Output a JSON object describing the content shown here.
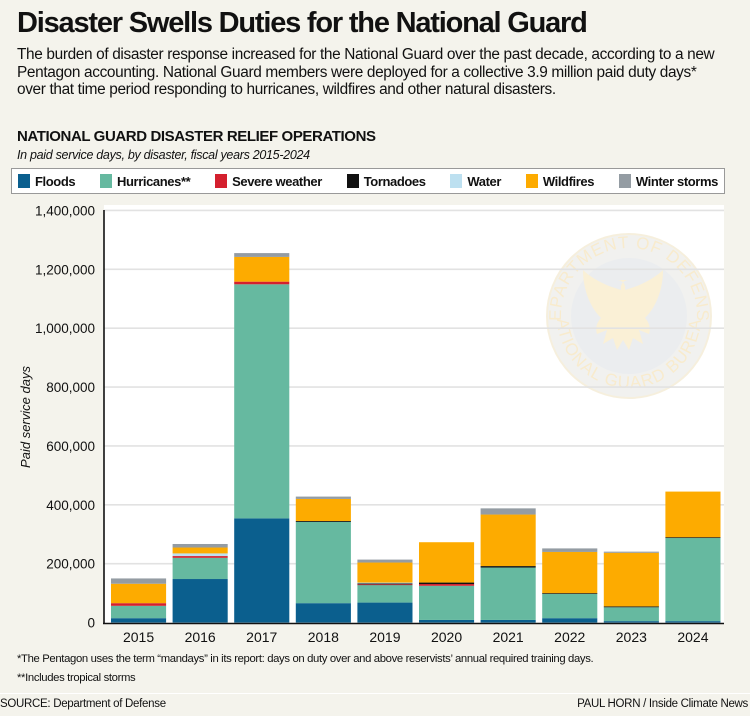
{
  "header": {
    "title": "Disaster Swells Duties for the National Guard",
    "dek": "The burden of disaster response increased for the National Guard over the past decade, according to a new Pentagon accounting. National Guard members were deployed for a collective 3.9 million paid duty days* over that time period responding to hurricanes, wildfires and other natural disasters."
  },
  "chart_data": {
    "type": "bar",
    "stacked": true,
    "title": "NATIONAL GUARD DISASTER RELIEF OPERATIONS",
    "subtitle": "In paid service days, by disaster, fiscal years 2015-2024",
    "xlabel": "",
    "ylabel": "Paid service days",
    "ylim": [
      0,
      1400000
    ],
    "yticks": [
      0,
      200000,
      400000,
      600000,
      800000,
      1000000,
      1200000,
      1400000
    ],
    "ytick_labels": [
      "0",
      "200,000",
      "400,000",
      "600,000",
      "800,000",
      "1,000,000",
      "1,200,000",
      "1,400,000"
    ],
    "grid": true,
    "legend_position": "top",
    "categories": [
      "2015",
      "2016",
      "2017",
      "2018",
      "2019",
      "2020",
      "2021",
      "2022",
      "2023",
      "2024"
    ],
    "series": [
      {
        "name": "Floods",
        "color": "#0b5f8e",
        "values": [
          15000,
          148000,
          354000,
          66000,
          68000,
          9000,
          9000,
          15000,
          5000,
          5000
        ]
      },
      {
        "name": "Hurricanes**",
        "color": "#66b9a0",
        "values": [
          42000,
          72000,
          795000,
          276000,
          60000,
          116000,
          178000,
          83000,
          47000,
          283000
        ]
      },
      {
        "name": "Severe weather",
        "color": "#d4202e",
        "values": [
          9000,
          6000,
          9000,
          0,
          2000,
          6000,
          0,
          0,
          0,
          0
        ]
      },
      {
        "name": "Tornadoes",
        "color": "#111111",
        "values": [
          0,
          0,
          0,
          3000,
          3000,
          5000,
          5000,
          2000,
          3000,
          2000
        ]
      },
      {
        "name": "Water",
        "color": "#bde0f0",
        "values": [
          0,
          9000,
          0,
          0,
          3000,
          0,
          0,
          0,
          0,
          0
        ]
      },
      {
        "name": "Wildfires",
        "color": "#fdab00",
        "values": [
          66000,
          20000,
          84000,
          75000,
          68000,
          137000,
          175000,
          140000,
          182000,
          155000
        ]
      },
      {
        "name": "Winter storms",
        "color": "#949ca3",
        "values": [
          18000,
          12000,
          13000,
          8000,
          10000,
          0,
          21000,
          12000,
          4000,
          0
        ]
      }
    ]
  },
  "footnotes": {
    "note1": "*The Pentagon uses the term “mandays” in its report: days on duty over and above reservists’ annual required training days.",
    "note2": "**Includes tropical storms"
  },
  "source": "SOURCE: Department of Defense",
  "credit": "PAUL HORN / Inside Climate News",
  "watermark": {
    "top_text": "DEPARTMENT OF DEFENSE",
    "bottom_text": "NATIONAL GUARD BUREAU"
  }
}
